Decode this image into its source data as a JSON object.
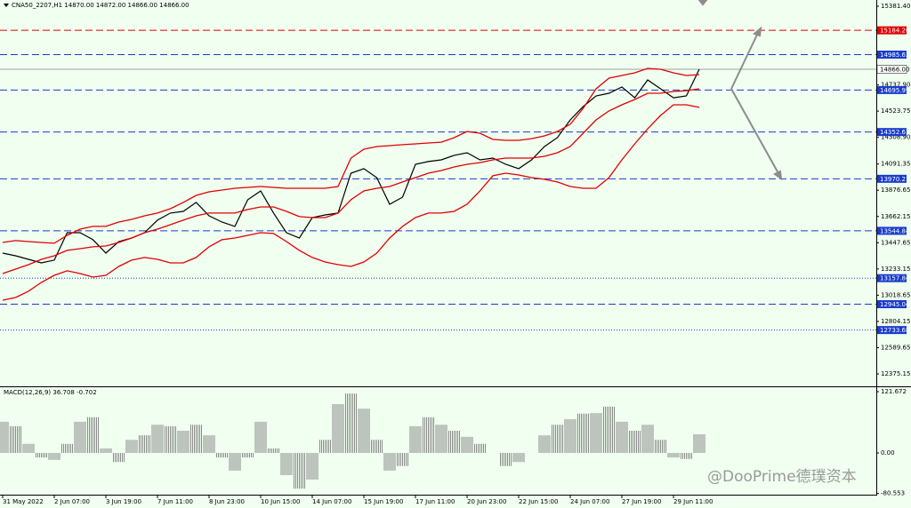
{
  "chart_data": [
    {
      "type": "line",
      "title": "CNA50_2207,H1  14870.00 14872.00 14866.00 14866.00",
      "categories": [
        "31 May 2022",
        null,
        null,
        null,
        "2 Jun 07:00",
        null,
        null,
        null,
        "3 Jun 19:00",
        null,
        null,
        null,
        "7 Jun 11:00",
        null,
        null,
        null,
        "8 Jun 23:00",
        null,
        null,
        null,
        "10 Jun 15:00",
        null,
        null,
        null,
        "14 Jun 07:00",
        null,
        null,
        null,
        "15 Jun 19:00",
        null,
        null,
        null,
        "17 Jun 11:00",
        null,
        null,
        null,
        "20 Jun 23:00",
        null,
        null,
        null,
        "22 Jun 15:00",
        null,
        null,
        null,
        "24 Jun 07:00",
        null,
        null,
        null,
        "27 Jun 19:00",
        null,
        null,
        null,
        "29 Jun 11:00",
        null,
        null
      ],
      "series": [
        {
          "color": "#000000",
          "values": [
            13363,
            13341,
            13312,
            13283,
            13305,
            13530,
            13530,
            13472,
            13363,
            13457,
            13486,
            13530,
            13632,
            13690,
            13704,
            13777,
            13668,
            13617,
            13581,
            13799,
            13871,
            13690,
            13530,
            13486,
            13653,
            13675,
            13690,
            14016,
            14053,
            13980,
            13762,
            13820,
            14089,
            14111,
            14125,
            14162,
            14183,
            14125,
            14140,
            14089,
            14053,
            14125,
            14234,
            14307,
            14452,
            14561,
            14648,
            14670,
            14721,
            14633,
            14779,
            14706,
            14633,
            14648,
            14866
          ]
        },
        {
          "color": "#e00000",
          "values": [
            13450,
            13465,
            13457,
            13450,
            13443,
            13508,
            13559,
            13581,
            13581,
            13617,
            13639,
            13668,
            13690,
            13726,
            13777,
            13835,
            13864,
            13878,
            13893,
            13900,
            13907,
            13900,
            13893,
            13893,
            13893,
            13893,
            13907,
            14140,
            14212,
            14234,
            14241,
            14249,
            14256,
            14263,
            14270,
            14307,
            14357,
            14343,
            14292,
            14285,
            14285,
            14299,
            14321,
            14357,
            14416,
            14546,
            14706,
            14793,
            14815,
            14837,
            14873,
            14866,
            14837,
            14815,
            14822
          ]
        },
        {
          "color": "#e00000",
          "values": [
            13196,
            13232,
            13268,
            13312,
            13341,
            13385,
            13399,
            13414,
            13421,
            13450,
            13486,
            13530,
            13559,
            13595,
            13632,
            13668,
            13690,
            13690,
            13690,
            13719,
            13740,
            13740,
            13704,
            13661,
            13653,
            13653,
            13690,
            13799,
            13871,
            13893,
            13907,
            13944,
            13980,
            14016,
            14038,
            14067,
            14089,
            14103,
            14125,
            14140,
            14140,
            14140,
            14154,
            14183,
            14234,
            14343,
            14452,
            14525,
            14575,
            14619,
            14670,
            14670,
            14684,
            14691,
            14706
          ]
        },
        {
          "color": "#e00000",
          "values": [
            12978,
            13000,
            13051,
            13123,
            13181,
            13218,
            13196,
            13167,
            13181,
            13254,
            13305,
            13327,
            13312,
            13283,
            13283,
            13327,
            13414,
            13472,
            13486,
            13508,
            13530,
            13523,
            13457,
            13385,
            13327,
            13290,
            13268,
            13254,
            13290,
            13363,
            13486,
            13581,
            13653,
            13690,
            13690,
            13704,
            13762,
            13871,
            13995,
            14016,
            14002,
            13980,
            13966,
            13944,
            13907,
            13893,
            13893,
            13980,
            14125,
            14256,
            14379,
            14488,
            14575,
            14575,
            14554
          ]
        }
      ],
      "ylim": [
        12273.5,
        15432.2
      ],
      "yticks": [
        {
          "value": 15381.4,
          "label": "15381.40"
        },
        {
          "value": 14737.9,
          "label": "14737.90"
        },
        {
          "value": 14523.75,
          "label": "14523.75"
        },
        {
          "value": 14308.9,
          "label": "14308.90"
        },
        {
          "value": 14091.35,
          "label": "14091.35"
        },
        {
          "value": 13876.65,
          "label": "13876.65"
        },
        {
          "value": 13662.15,
          "label": "13662.15"
        },
        {
          "value": 13447.65,
          "label": "13447.65"
        },
        {
          "value": 13233.15,
          "label": "13233.15"
        },
        {
          "value": 13018.65,
          "label": "13018.65"
        },
        {
          "value": 12804.15,
          "label": "12804.15"
        },
        {
          "value": 12589.65,
          "label": "12589.65"
        },
        {
          "value": 12375.15,
          "label": "12375.15"
        }
      ],
      "levels": [
        {
          "value": 15184.26,
          "color": "#e00000",
          "style": "dashed"
        },
        {
          "value": 14985.62,
          "color": "#1a3ccc",
          "style": "dashed"
        },
        {
          "value": 14866,
          "label": "14866.00",
          "color": "#a0a0a0",
          "style": "solid"
        },
        {
          "value": 14695.99,
          "color": "#1a3ccc",
          "style": "dashed"
        },
        {
          "value": 14352.61,
          "color": "#1a3ccc",
          "style": "dashed"
        },
        {
          "value": 13970.21,
          "color": "#1a3ccc",
          "style": "dashed"
        },
        {
          "value": 13544.84,
          "color": "#1a3ccc",
          "style": "dashed"
        },
        {
          "value": 13157.84,
          "color": "#1a3ccc",
          "style": "dotted"
        },
        {
          "value": 12945.04,
          "color": "#1a3ccc",
          "style": "dashed"
        },
        {
          "value": 12733.68,
          "color": "#1a3ccc",
          "style": "dotted"
        }
      ],
      "grid": false
    },
    {
      "type": "bar",
      "title": "MACD(12,26,9) 36.708 -0.702",
      "color": "#8a8a8a",
      "values": [
        62,
        53,
        18,
        -9,
        -14,
        18,
        62,
        71,
        9,
        -18,
        26,
        35,
        56,
        53,
        44,
        56,
        35,
        -9,
        -35,
        -9,
        62,
        9,
        -44,
        -71,
        -53,
        26,
        97,
        118,
        88,
        26,
        -35,
        -26,
        53,
        71,
        56,
        44,
        32,
        18,
        0,
        -26,
        -18,
        0,
        35,
        56,
        67,
        78,
        79,
        92,
        62,
        44,
        56,
        26,
        -9,
        -12,
        37
      ],
      "ylim": [
        -82.9,
        128.7
      ],
      "yticks": [
        121.672,
        {
          "value": 0,
          "label": "0.00"
        },
        -80.553
      ],
      "grid": false
    }
  ],
  "watermark": "@DooPrime德璞资本"
}
